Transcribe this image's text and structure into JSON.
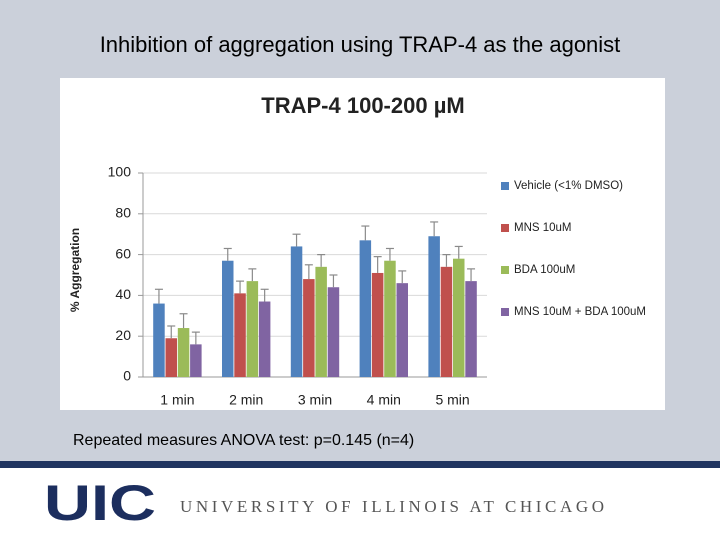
{
  "slide_title": "Inhibition of aggregation using TRAP-4 as the agonist",
  "caption": "Repeated measures ANOVA test: p=0.145 (n=4)",
  "footer": {
    "logo": "UIC",
    "university": "UNIVERSITY OF ILLINOIS AT CHICAGO"
  },
  "chart_data": {
    "type": "bar",
    "title": "TRAP-4  100-200 µM",
    "y_label": "% Aggregation",
    "categories": [
      "1 min",
      "2 min",
      "3 min",
      "4 min",
      "5 min"
    ],
    "series": [
      {
        "name": "Vehicle (<1% DMSO)",
        "color": "#4f81bd",
        "values": [
          36,
          57,
          64,
          67,
          69
        ],
        "errors": [
          7,
          6,
          6,
          7,
          7
        ]
      },
      {
        "name": "MNS 10uM",
        "color": "#c0504d",
        "values": [
          19,
          41,
          48,
          51,
          54
        ],
        "errors": [
          6,
          6,
          7,
          8,
          6
        ]
      },
      {
        "name": "BDA 100uM",
        "color": "#9bbb59",
        "values": [
          24,
          47,
          54,
          57,
          58
        ],
        "errors": [
          7,
          6,
          6,
          6,
          6
        ]
      },
      {
        "name": "MNS 10uM + BDA 100uM",
        "color": "#8064a2",
        "values": [
          16,
          37,
          44,
          46,
          47
        ],
        "errors": [
          6,
          6,
          6,
          6,
          6
        ]
      }
    ],
    "ylim": [
      0,
      100
    ],
    "yticks": [
      0,
      20,
      40,
      60,
      80,
      100
    ],
    "grid": true,
    "legend": "right"
  }
}
